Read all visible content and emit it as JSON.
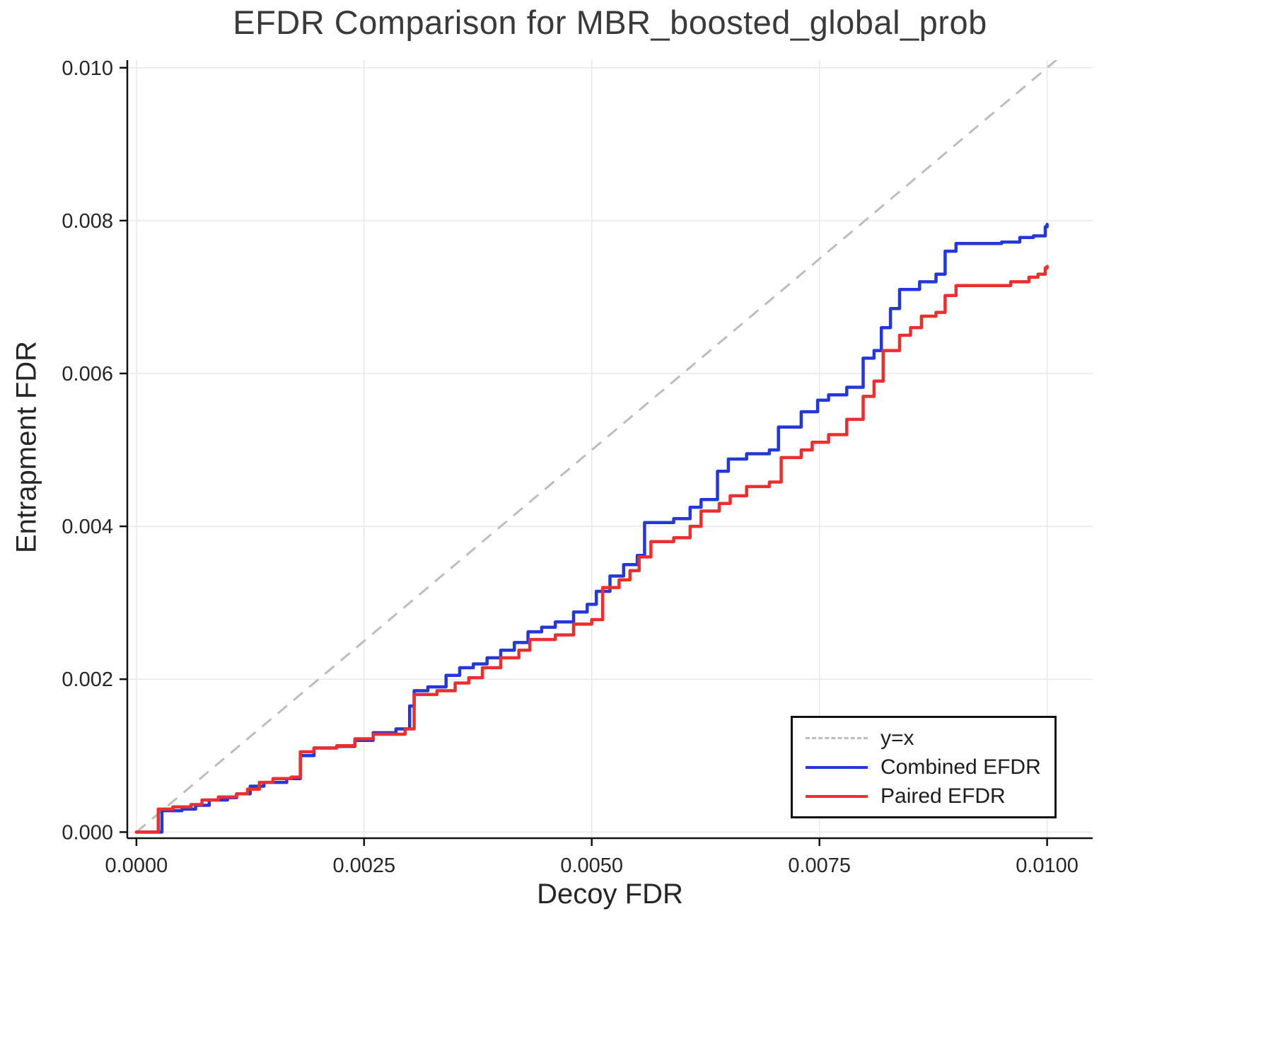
{
  "chart_data": {
    "type": "line",
    "title": "EFDR Comparison for MBR_boosted_global_prob",
    "xlabel": "Decoy FDR",
    "ylabel": "Entrapment FDR",
    "xlim": [
      -0.0001,
      0.0105
    ],
    "ylim": [
      -8e-05,
      0.0101
    ],
    "grid": true,
    "grid_color": "#e8e8e8",
    "axis_color": "#111111",
    "background": "#ffffff",
    "xticks": {
      "values": [
        0,
        0.0025,
        0.005,
        0.0075,
        0.01
      ],
      "labels": [
        "0.0000",
        "0.0025",
        "0.0050",
        "0.0075",
        "0.0100"
      ]
    },
    "yticks": {
      "values": [
        0,
        0.002,
        0.004,
        0.006,
        0.008,
        0.01
      ],
      "labels": [
        "0.000",
        "0.002",
        "0.004",
        "0.006",
        "0.008",
        "0.010"
      ]
    },
    "reference_line": {
      "name": "y=x",
      "color": "#bdbdbd",
      "dashed": true,
      "from": [
        0,
        0
      ],
      "to": [
        0.0104,
        0.0104
      ]
    },
    "series": [
      {
        "name": "Combined EFDR",
        "color": "#2437d8",
        "step": true,
        "points": [
          [
            0.0,
            0.0
          ],
          [
            0.0002,
            0.0
          ],
          [
            0.00028,
            0.00028
          ],
          [
            0.0005,
            0.0003
          ],
          [
            0.00065,
            0.00035
          ],
          [
            0.0008,
            0.00042
          ],
          [
            0.001,
            0.00045
          ],
          [
            0.0011,
            0.0005
          ],
          [
            0.00125,
            0.0006
          ],
          [
            0.0014,
            0.00065
          ],
          [
            0.00165,
            0.0007
          ],
          [
            0.0018,
            0.001
          ],
          [
            0.00195,
            0.0011
          ],
          [
            0.0022,
            0.00112
          ],
          [
            0.0024,
            0.0012
          ],
          [
            0.0026,
            0.0013
          ],
          [
            0.00285,
            0.00135
          ],
          [
            0.003,
            0.00165
          ],
          [
            0.00305,
            0.00185
          ],
          [
            0.0032,
            0.0019
          ],
          [
            0.0034,
            0.00205
          ],
          [
            0.00355,
            0.00215
          ],
          [
            0.0037,
            0.0022
          ],
          [
            0.00385,
            0.00228
          ],
          [
            0.004,
            0.00238
          ],
          [
            0.00415,
            0.00248
          ],
          [
            0.0043,
            0.00262
          ],
          [
            0.00445,
            0.00268
          ],
          [
            0.0046,
            0.00275
          ],
          [
            0.0048,
            0.00288
          ],
          [
            0.00495,
            0.00298
          ],
          [
            0.00505,
            0.00315
          ],
          [
            0.0052,
            0.00335
          ],
          [
            0.00535,
            0.0035
          ],
          [
            0.0055,
            0.00362
          ],
          [
            0.00558,
            0.00405
          ],
          [
            0.0059,
            0.0041
          ],
          [
            0.00608,
            0.00425
          ],
          [
            0.0062,
            0.00435
          ],
          [
            0.00638,
            0.00472
          ],
          [
            0.0065,
            0.00488
          ],
          [
            0.0067,
            0.00495
          ],
          [
            0.00695,
            0.005
          ],
          [
            0.00705,
            0.0053
          ],
          [
            0.0073,
            0.0055
          ],
          [
            0.00748,
            0.00565
          ],
          [
            0.0076,
            0.00572
          ],
          [
            0.0078,
            0.00582
          ],
          [
            0.00798,
            0.0062
          ],
          [
            0.0081,
            0.0063
          ],
          [
            0.00818,
            0.0066
          ],
          [
            0.00828,
            0.00685
          ],
          [
            0.00838,
            0.0071
          ],
          [
            0.0086,
            0.0072
          ],
          [
            0.00878,
            0.0073
          ],
          [
            0.00888,
            0.0076
          ],
          [
            0.009,
            0.0077
          ],
          [
            0.0095,
            0.00772
          ],
          [
            0.0097,
            0.00778
          ],
          [
            0.00985,
            0.0078
          ],
          [
            0.00998,
            0.00792
          ],
          [
            0.01,
            0.00795
          ]
        ]
      },
      {
        "name": "Paired EFDR",
        "color": "#ee2e2e",
        "step": true,
        "points": [
          [
            0.0,
            0.0
          ],
          [
            0.00018,
            0.0
          ],
          [
            0.00024,
            0.0003
          ],
          [
            0.0004,
            0.00033
          ],
          [
            0.0006,
            0.00036
          ],
          [
            0.00072,
            0.00042
          ],
          [
            0.0009,
            0.00046
          ],
          [
            0.0011,
            0.0005
          ],
          [
            0.00122,
            0.00056
          ],
          [
            0.00135,
            0.00065
          ],
          [
            0.0015,
            0.0007
          ],
          [
            0.0017,
            0.00072
          ],
          [
            0.0018,
            0.00105
          ],
          [
            0.00195,
            0.0011
          ],
          [
            0.0022,
            0.00113
          ],
          [
            0.0024,
            0.00122
          ],
          [
            0.0026,
            0.00128
          ],
          [
            0.00295,
            0.00135
          ],
          [
            0.00305,
            0.0018
          ],
          [
            0.0033,
            0.00185
          ],
          [
            0.0035,
            0.00195
          ],
          [
            0.00365,
            0.00202
          ],
          [
            0.0038,
            0.00215
          ],
          [
            0.004,
            0.00228
          ],
          [
            0.0042,
            0.00238
          ],
          [
            0.00432,
            0.00252
          ],
          [
            0.0046,
            0.00258
          ],
          [
            0.0048,
            0.00272
          ],
          [
            0.005,
            0.00278
          ],
          [
            0.00512,
            0.0032
          ],
          [
            0.0053,
            0.0033
          ],
          [
            0.00542,
            0.00342
          ],
          [
            0.00552,
            0.0036
          ],
          [
            0.00565,
            0.0038
          ],
          [
            0.0059,
            0.00385
          ],
          [
            0.00608,
            0.004
          ],
          [
            0.0062,
            0.0042
          ],
          [
            0.0064,
            0.0043
          ],
          [
            0.00652,
            0.0044
          ],
          [
            0.0067,
            0.00452
          ],
          [
            0.00695,
            0.00458
          ],
          [
            0.00708,
            0.0049
          ],
          [
            0.0073,
            0.005
          ],
          [
            0.00742,
            0.0051
          ],
          [
            0.0076,
            0.0052
          ],
          [
            0.0078,
            0.0054
          ],
          [
            0.00798,
            0.0057
          ],
          [
            0.0081,
            0.0059
          ],
          [
            0.0082,
            0.0063
          ],
          [
            0.00838,
            0.0065
          ],
          [
            0.0085,
            0.0066
          ],
          [
            0.00862,
            0.00675
          ],
          [
            0.00878,
            0.0068
          ],
          [
            0.00888,
            0.00702
          ],
          [
            0.009,
            0.00715
          ],
          [
            0.0094,
            0.00715
          ],
          [
            0.0096,
            0.0072
          ],
          [
            0.0098,
            0.00726
          ],
          [
            0.0099,
            0.0073
          ],
          [
            0.00998,
            0.00738
          ],
          [
            0.01,
            0.0074
          ]
        ]
      }
    ],
    "legend": {
      "position": "bottom-right",
      "items": [
        {
          "label": "y=x",
          "color": "#bdbdbd",
          "dashed": true
        },
        {
          "label": "Combined EFDR",
          "color": "#2437d8",
          "dashed": false
        },
        {
          "label": "Paired EFDR",
          "color": "#ee2e2e",
          "dashed": false
        }
      ]
    }
  }
}
